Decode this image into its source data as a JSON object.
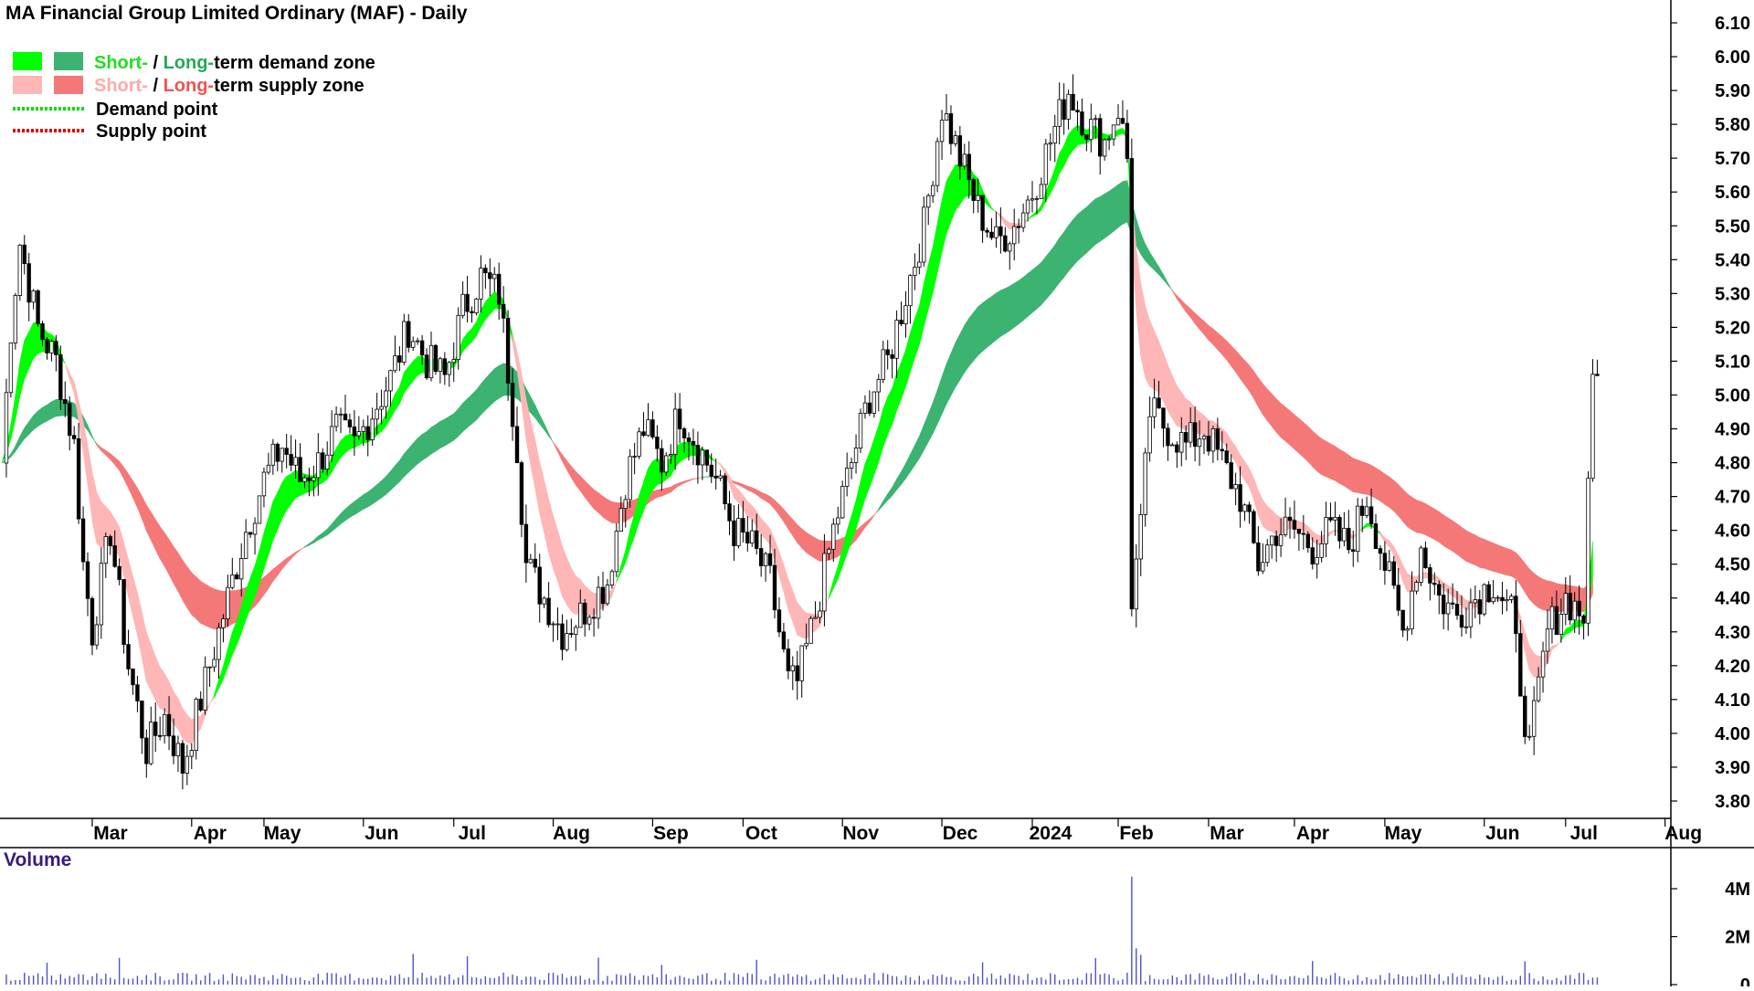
{
  "chart_data": {
    "type": "candlestick",
    "title": "MA Financial Group Limited Ordinary (MAF) - Daily",
    "ylim": [
      3.75,
      6.15
    ],
    "y_ticks": [
      "6.10",
      "6.00",
      "5.90",
      "5.80",
      "5.70",
      "5.60",
      "5.50",
      "5.40",
      "5.30",
      "5.20",
      "5.10",
      "5.00",
      "4.90",
      "4.80",
      "4.70",
      "4.60",
      "4.50",
      "4.40",
      "4.30",
      "4.20",
      "4.10",
      "4.00",
      "3.90",
      "3.80"
    ],
    "x_ticks": [
      "Mar",
      "Apr",
      "May",
      "Jun",
      "Jul",
      "Aug",
      "Sep",
      "Oct",
      "Nov",
      "Dec",
      "2024",
      "Feb",
      "Mar",
      "Apr",
      "May",
      "Jun",
      "Jul",
      "Aug"
    ],
    "x_tick_days": [
      20,
      42,
      58,
      80,
      100,
      122,
      144,
      164,
      186,
      208,
      228,
      247,
      267,
      286,
      306,
      328,
      346,
      368
    ],
    "legend": [
      {
        "prefix": "Short-",
        "sep": " / ",
        "mid": "Long-",
        "suffix": "term demand zone",
        "color_short": "#00ff00",
        "color_long": "#3cb371"
      },
      {
        "prefix": "Short-",
        "sep": " / ",
        "mid": "Long-",
        "suffix": "term supply zone",
        "color_short": "#ffb6b6",
        "color_long": "#f57878"
      },
      {
        "label": "Demand point",
        "color": "#00dd00"
      },
      {
        "label": "Supply point",
        "color": "#dd0000"
      }
    ],
    "series_price_anchors": [
      [
        0,
        4.8
      ],
      [
        2,
        5.2
      ],
      [
        4,
        5.45
      ],
      [
        8,
        5.2
      ],
      [
        12,
        5.1
      ],
      [
        16,
        4.85
      ],
      [
        18,
        4.5
      ],
      [
        20,
        4.3
      ],
      [
        24,
        4.6
      ],
      [
        28,
        4.2
      ],
      [
        32,
        3.95
      ],
      [
        36,
        4.05
      ],
      [
        40,
        3.9
      ],
      [
        44,
        4.1
      ],
      [
        48,
        4.3
      ],
      [
        54,
        4.6
      ],
      [
        58,
        4.75
      ],
      [
        62,
        4.85
      ],
      [
        66,
        4.75
      ],
      [
        70,
        4.8
      ],
      [
        74,
        4.9
      ],
      [
        78,
        4.85
      ],
      [
        82,
        4.95
      ],
      [
        86,
        5.05
      ],
      [
        90,
        5.2
      ],
      [
        94,
        5.1
      ],
      [
        98,
        5.05
      ],
      [
        102,
        5.25
      ],
      [
        106,
        5.35
      ],
      [
        110,
        5.3
      ],
      [
        114,
        4.85
      ],
      [
        116,
        4.5
      ],
      [
        120,
        4.4
      ],
      [
        124,
        4.3
      ],
      [
        128,
        4.35
      ],
      [
        134,
        4.45
      ],
      [
        138,
        4.75
      ],
      [
        142,
        4.9
      ],
      [
        146,
        4.8
      ],
      [
        150,
        4.95
      ],
      [
        154,
        4.85
      ],
      [
        158,
        4.75
      ],
      [
        162,
        4.6
      ],
      [
        166,
        4.55
      ],
      [
        170,
        4.45
      ],
      [
        174,
        4.15
      ],
      [
        176,
        4.15
      ],
      [
        180,
        4.35
      ],
      [
        184,
        4.6
      ],
      [
        188,
        4.8
      ],
      [
        192,
        5.0
      ],
      [
        196,
        5.1
      ],
      [
        200,
        5.3
      ],
      [
        204,
        5.5
      ],
      [
        208,
        5.85
      ],
      [
        212,
        5.7
      ],
      [
        216,
        5.55
      ],
      [
        220,
        5.45
      ],
      [
        224,
        5.5
      ],
      [
        228,
        5.6
      ],
      [
        232,
        5.75
      ],
      [
        236,
        5.9
      ],
      [
        240,
        5.8
      ],
      [
        244,
        5.75
      ],
      [
        247,
        5.85
      ],
      [
        249,
        5.7
      ],
      [
        250,
        4.4
      ],
      [
        252,
        4.6
      ],
      [
        254,
        4.95
      ],
      [
        258,
        4.9
      ],
      [
        262,
        4.85
      ],
      [
        266,
        4.9
      ],
      [
        270,
        4.8
      ],
      [
        274,
        4.7
      ],
      [
        278,
        4.5
      ],
      [
        282,
        4.6
      ],
      [
        286,
        4.6
      ],
      [
        290,
        4.55
      ],
      [
        294,
        4.6
      ],
      [
        298,
        4.55
      ],
      [
        302,
        4.7
      ],
      [
        306,
        4.5
      ],
      [
        310,
        4.3
      ],
      [
        314,
        4.55
      ],
      [
        318,
        4.4
      ],
      [
        322,
        4.35
      ],
      [
        326,
        4.4
      ],
      [
        330,
        4.45
      ],
      [
        334,
        4.35
      ],
      [
        338,
        3.95
      ],
      [
        342,
        4.3
      ],
      [
        346,
        4.4
      ],
      [
        350,
        4.35
      ],
      [
        352,
        5.05
      ],
      [
        353,
        5.1
      ]
    ],
    "series_volume_note": "Volume",
    "volume_ticks": [
      "4M",
      "2M",
      "0"
    ]
  }
}
